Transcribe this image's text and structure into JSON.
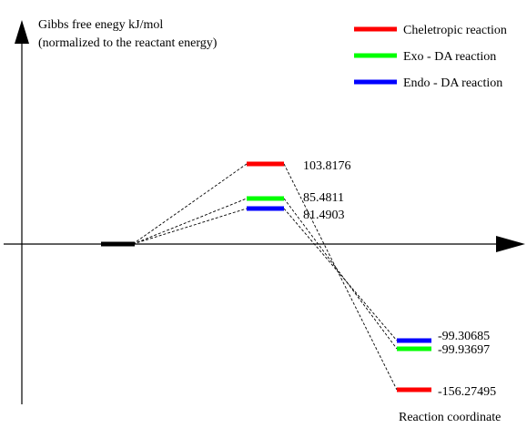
{
  "y_axis": {
    "title_line1": "Gibbs free enegy kJ/mol",
    "title_line2": "(normalized to the reactant energy)"
  },
  "x_axis": {
    "title": "Reaction coordinate"
  },
  "legend": [
    {
      "key": "cheletropic",
      "label": "Cheletropic reaction",
      "color": "#ff0000"
    },
    {
      "key": "exo",
      "label": "Exo - DA reaction",
      "color": "#00ff00"
    },
    {
      "key": "endo",
      "label": "Endo - DA reaction",
      "color": "#0000ff"
    }
  ],
  "reactant_color": "#000000",
  "connector_color": "#000000",
  "transition_states": [
    {
      "key": "cheletropic",
      "value_label": "103.8176",
      "energy": 103.8176,
      "color": "#ff0000"
    },
    {
      "key": "exo",
      "value_label": "85.4811",
      "energy": 85.4811,
      "color": "#00ff00"
    },
    {
      "key": "endo",
      "value_label": "81.4903",
      "energy": 81.4903,
      "color": "#0000ff"
    }
  ],
  "products": [
    {
      "key": "endo",
      "value_label": "-99.30685",
      "energy": -99.30685,
      "color": "#0000ff"
    },
    {
      "key": "exo",
      "value_label": "-99.93697",
      "energy": -99.93697,
      "color": "#00ff00"
    },
    {
      "key": "cheletropic",
      "value_label": "-156.27495",
      "energy": -156.27495,
      "color": "#ff0000"
    }
  ]
}
